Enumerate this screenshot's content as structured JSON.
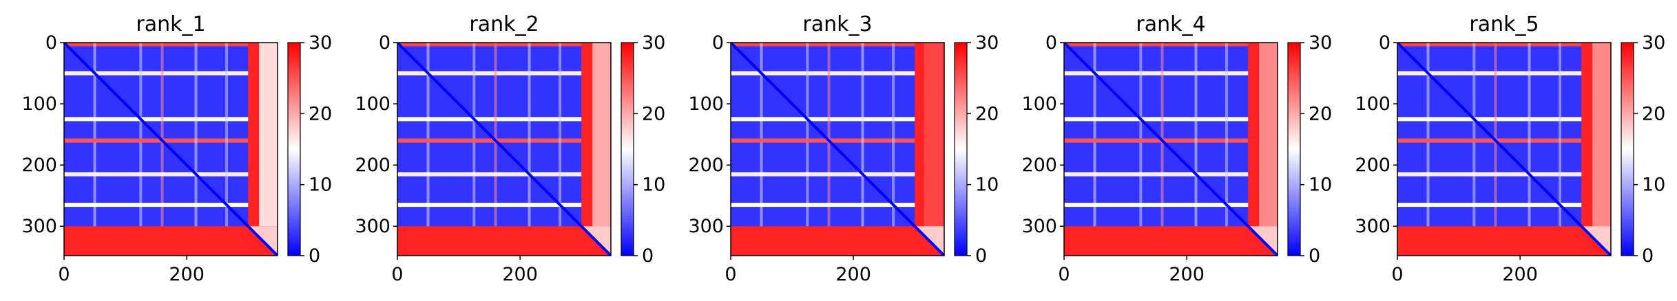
{
  "chart_data": [
    {
      "type": "heatmap",
      "title": "rank_1",
      "x_ticks": [
        0,
        200
      ],
      "y_ticks": [
        0,
        100,
        200,
        300
      ],
      "x_range": [
        0,
        348
      ],
      "y_range": [
        0,
        348
      ],
      "colorbar": {
        "range": [
          0,
          30
        ],
        "ticks": [
          0,
          10,
          20,
          30
        ],
        "colormap": "bwr"
      },
      "blocks": [
        {
          "start": 0,
          "end": 300,
          "level": 3
        },
        {
          "start": 300,
          "end": 348,
          "level": 28
        }
      ],
      "separators": [
        {
          "pos": 50,
          "level": 16
        },
        {
          "pos": 125,
          "level": 15
        },
        {
          "pos": 160,
          "level": 25
        },
        {
          "pos": 215,
          "level": 16
        },
        {
          "pos": 265,
          "level": 15
        }
      ],
      "tail_band": {
        "start": 318,
        "end": 348,
        "level": 17
      }
    },
    {
      "type": "heatmap",
      "title": "rank_2",
      "x_ticks": [
        0,
        200
      ],
      "y_ticks": [
        0,
        100,
        200,
        300
      ],
      "x_range": [
        0,
        348
      ],
      "y_range": [
        0,
        348
      ],
      "colorbar": {
        "range": [
          0,
          30
        ],
        "ticks": [
          0,
          10,
          20,
          30
        ],
        "colormap": "bwr"
      },
      "blocks": [
        {
          "start": 0,
          "end": 300,
          "level": 3
        },
        {
          "start": 300,
          "end": 348,
          "level": 28
        }
      ],
      "separators": [
        {
          "pos": 50,
          "level": 16
        },
        {
          "pos": 125,
          "level": 15
        },
        {
          "pos": 160,
          "level": 25
        },
        {
          "pos": 215,
          "level": 16
        },
        {
          "pos": 265,
          "level": 15
        }
      ],
      "tail_band": {
        "start": 318,
        "end": 348,
        "level": 20
      }
    },
    {
      "type": "heatmap",
      "title": "rank_3",
      "x_ticks": [
        0,
        200
      ],
      "y_ticks": [
        0,
        100,
        200,
        300
      ],
      "x_range": [
        0,
        348
      ],
      "y_range": [
        0,
        348
      ],
      "colorbar": {
        "range": [
          0,
          30
        ],
        "ticks": [
          0,
          10,
          20,
          30
        ],
        "colormap": "bwr"
      },
      "blocks": [
        {
          "start": 0,
          "end": 300,
          "level": 3
        },
        {
          "start": 300,
          "end": 348,
          "level": 28
        }
      ],
      "separators": [
        {
          "pos": 50,
          "level": 16
        },
        {
          "pos": 125,
          "level": 15
        },
        {
          "pos": 160,
          "level": 25
        },
        {
          "pos": 215,
          "level": 16
        },
        {
          "pos": 265,
          "level": 15
        }
      ],
      "tail_band": {
        "start": 315,
        "end": 348,
        "level": 26
      }
    },
    {
      "type": "heatmap",
      "title": "rank_4",
      "x_ticks": [
        0,
        200
      ],
      "y_ticks": [
        0,
        100,
        200,
        300
      ],
      "x_range": [
        0,
        348
      ],
      "y_range": [
        0,
        348
      ],
      "colorbar": {
        "range": [
          0,
          30
        ],
        "ticks": [
          0,
          10,
          20,
          30
        ],
        "colormap": "bwr"
      },
      "blocks": [
        {
          "start": 0,
          "end": 300,
          "level": 3
        },
        {
          "start": 300,
          "end": 348,
          "level": 28
        }
      ],
      "separators": [
        {
          "pos": 50,
          "level": 16
        },
        {
          "pos": 125,
          "level": 15
        },
        {
          "pos": 160,
          "level": 25
        },
        {
          "pos": 215,
          "level": 16
        },
        {
          "pos": 265,
          "level": 15
        }
      ],
      "tail_band": {
        "start": 318,
        "end": 348,
        "level": 22
      }
    },
    {
      "type": "heatmap",
      "title": "rank_5",
      "x_ticks": [
        0,
        200
      ],
      "y_ticks": [
        0,
        100,
        200,
        300
      ],
      "x_range": [
        0,
        348
      ],
      "y_range": [
        0,
        348
      ],
      "colorbar": {
        "range": [
          0,
          30
        ],
        "ticks": [
          0,
          10,
          20,
          30
        ],
        "colormap": "bwr"
      },
      "blocks": [
        {
          "start": 0,
          "end": 300,
          "level": 3
        },
        {
          "start": 300,
          "end": 348,
          "level": 28
        }
      ],
      "separators": [
        {
          "pos": 50,
          "level": 16
        },
        {
          "pos": 125,
          "level": 15
        },
        {
          "pos": 160,
          "level": 25
        },
        {
          "pos": 215,
          "level": 16
        },
        {
          "pos": 265,
          "level": 15
        }
      ],
      "tail_band": {
        "start": 318,
        "end": 348,
        "level": 22
      }
    }
  ]
}
